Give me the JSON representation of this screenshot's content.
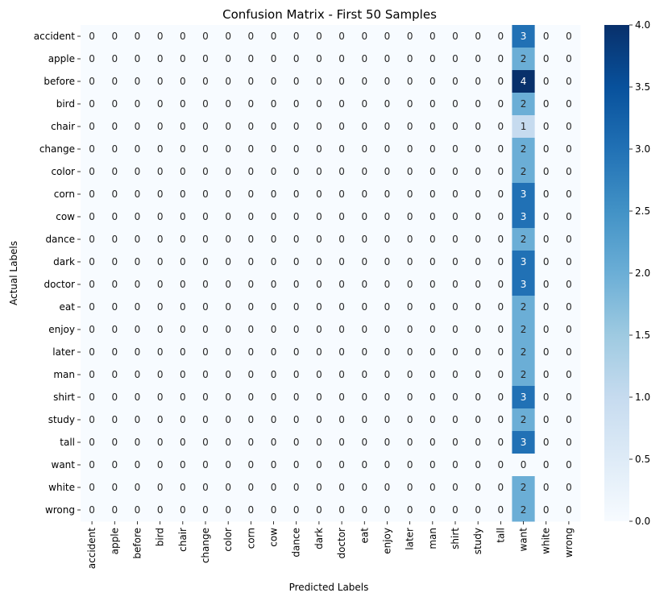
{
  "chart_data": {
    "type": "heatmap",
    "title": "Confusion Matrix - First 50 Samples",
    "xlabel": "Predicted Labels",
    "ylabel": "Actual Labels",
    "row_labels": [
      "accident",
      "apple",
      "before",
      "bird",
      "chair",
      "change",
      "color",
      "corn",
      "cow",
      "dance",
      "dark",
      "doctor",
      "eat",
      "enjoy",
      "later",
      "man",
      "shirt",
      "study",
      "tall",
      "want",
      "white",
      "wrong"
    ],
    "col_labels": [
      "accident",
      "apple",
      "before",
      "bird",
      "chair",
      "change",
      "color",
      "corn",
      "cow",
      "dance",
      "dark",
      "doctor",
      "eat",
      "enjoy",
      "later",
      "man",
      "shirt",
      "study",
      "tall",
      "want",
      "white",
      "wrong"
    ],
    "want_column_values": [
      3,
      2,
      4,
      2,
      1,
      2,
      2,
      3,
      3,
      2,
      3,
      3,
      2,
      2,
      2,
      2,
      3,
      2,
      3,
      0,
      2,
      2
    ],
    "colorbar": {
      "min": 0.0,
      "max": 4.0,
      "ticks": [
        "0.0",
        "0.5",
        "1.0",
        "1.5",
        "2.0",
        "2.5",
        "3.0",
        "3.5",
        "4.0"
      ],
      "colormap": "Blues"
    },
    "colors": {
      "low": "#f7fbff",
      "high": "#08306b"
    }
  }
}
